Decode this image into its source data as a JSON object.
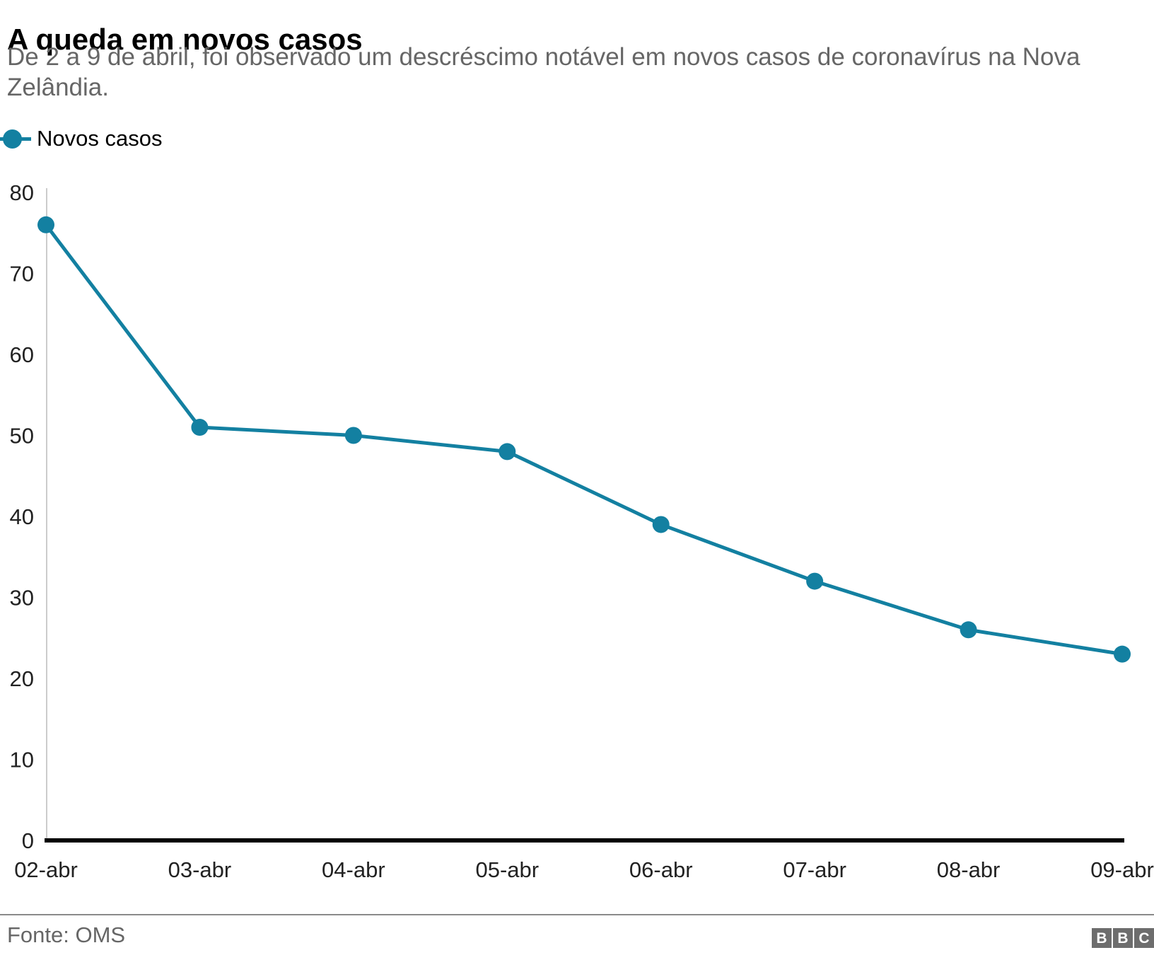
{
  "header": {
    "title": "A queda em novos casos",
    "subtitle": "De 2 a 9 de abril, foi observado um descréscimo notável em novos casos de coronavírus na Nova Zelândia."
  },
  "legend": {
    "label": "Novos casos"
  },
  "chart_data": {
    "type": "line",
    "title": "A queda em novos casos",
    "subtitle": "De 2 a 9 de abril, foi observado um descréscimo notável em novos casos de coronavírus na Nova Zelândia.",
    "categories": [
      "02-abr",
      "03-abr",
      "04-abr",
      "05-abr",
      "06-abr",
      "07-abr",
      "08-abr",
      "09-abr"
    ],
    "series": [
      {
        "name": "Novos casos",
        "values": [
          76,
          51,
          50,
          48,
          39,
          32,
          26,
          23
        ],
        "color": "#1380A1"
      }
    ],
    "xlabel": "",
    "ylabel": "",
    "ylim": [
      0,
      80
    ],
    "yticks": [
      0,
      10,
      20,
      30,
      40,
      50,
      60,
      70,
      80
    ],
    "grid": false,
    "legend_position": "top-left",
    "marker": "circle"
  },
  "footer": {
    "source": "Fonte: OMS",
    "logo_letters": [
      "B",
      "B",
      "C"
    ]
  },
  "colors": {
    "accent": "#1380A1",
    "title_text": "#000000",
    "subtitle_text": "#666666",
    "tick_text": "#222222",
    "y_axis_line": "#cccccc",
    "x_axis_line": "#000000",
    "divider": "#8a8a8a",
    "logo_bg": "#6d6d6d"
  }
}
